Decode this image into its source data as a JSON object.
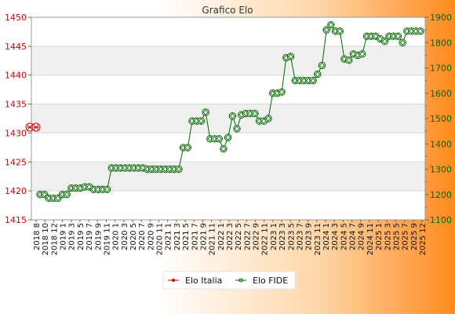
{
  "chart_data": {
    "type": "line",
    "title": "Grafico Elo",
    "x_labels": [
      "2018 8",
      "2018 10",
      "2018 12",
      "2019 1",
      "2019 3",
      "2019 5",
      "2019 7",
      "2019 9",
      "2019 11",
      "2020 1",
      "2020 3",
      "2020 5",
      "2020 7",
      "2020 9",
      "2020 11",
      "2021 1",
      "2021 3",
      "2021 5",
      "2021 7",
      "2021 9",
      "2021 11",
      "2022 1",
      "2022 3",
      "2022 5",
      "2022 7",
      "2022 9",
      "2022 11",
      "2023 1",
      "2023 3",
      "2023 5",
      "2023 7",
      "2023 9",
      "2023 11",
      "2024 1",
      "2024 3",
      "2024 5",
      "2024 7",
      "2024 9",
      "2024 11",
      "2025 1",
      "2025 3",
      "2025 5",
      "2025 7",
      "2025 9",
      "2025 12"
    ],
    "left_axis": {
      "min": 1415,
      "max": 1450,
      "step": 5,
      "color": "#cc0000"
    },
    "right_axis": {
      "min": 1100,
      "max": 1900,
      "step": 100,
      "color": "#006600"
    },
    "series": [
      {
        "name": "Elo Italia",
        "axis": "left",
        "color": "#cc0000",
        "marker": "star",
        "values": [
          1431.0,
          1431.0
        ]
      },
      {
        "name": "Elo FIDE",
        "axis": "right",
        "color": "#006600",
        "marker": "diamond",
        "values": [
          1200,
          1200,
          1185,
          1185,
          1185,
          1200,
          1200,
          1225,
          1225,
          1225,
          1230,
          1230,
          1220,
          1220,
          1220,
          1220,
          1305,
          1305,
          1305,
          1305,
          1305,
          1305,
          1305,
          1305,
          1300,
          1300,
          1300,
          1300,
          1300,
          1300,
          1300,
          1300,
          1385,
          1385,
          1490,
          1490,
          1490,
          1525,
          1420,
          1420,
          1420,
          1380,
          1425,
          1510,
          1460,
          1515,
          1520,
          1520,
          1520,
          1490,
          1490,
          1500,
          1600,
          1600,
          1605,
          1740,
          1745,
          1650,
          1650,
          1650,
          1650,
          1650,
          1675,
          1710,
          1850,
          1870,
          1845,
          1845,
          1735,
          1730,
          1755,
          1750,
          1755,
          1825,
          1825,
          1825,
          1815,
          1805,
          1825,
          1825,
          1825,
          1800,
          1845,
          1845,
          1845,
          1845
        ]
      }
    ],
    "legend": {
      "placement": "bottom-center",
      "items": [
        "Elo Italia",
        "Elo FIDE"
      ]
    },
    "grid": true
  }
}
